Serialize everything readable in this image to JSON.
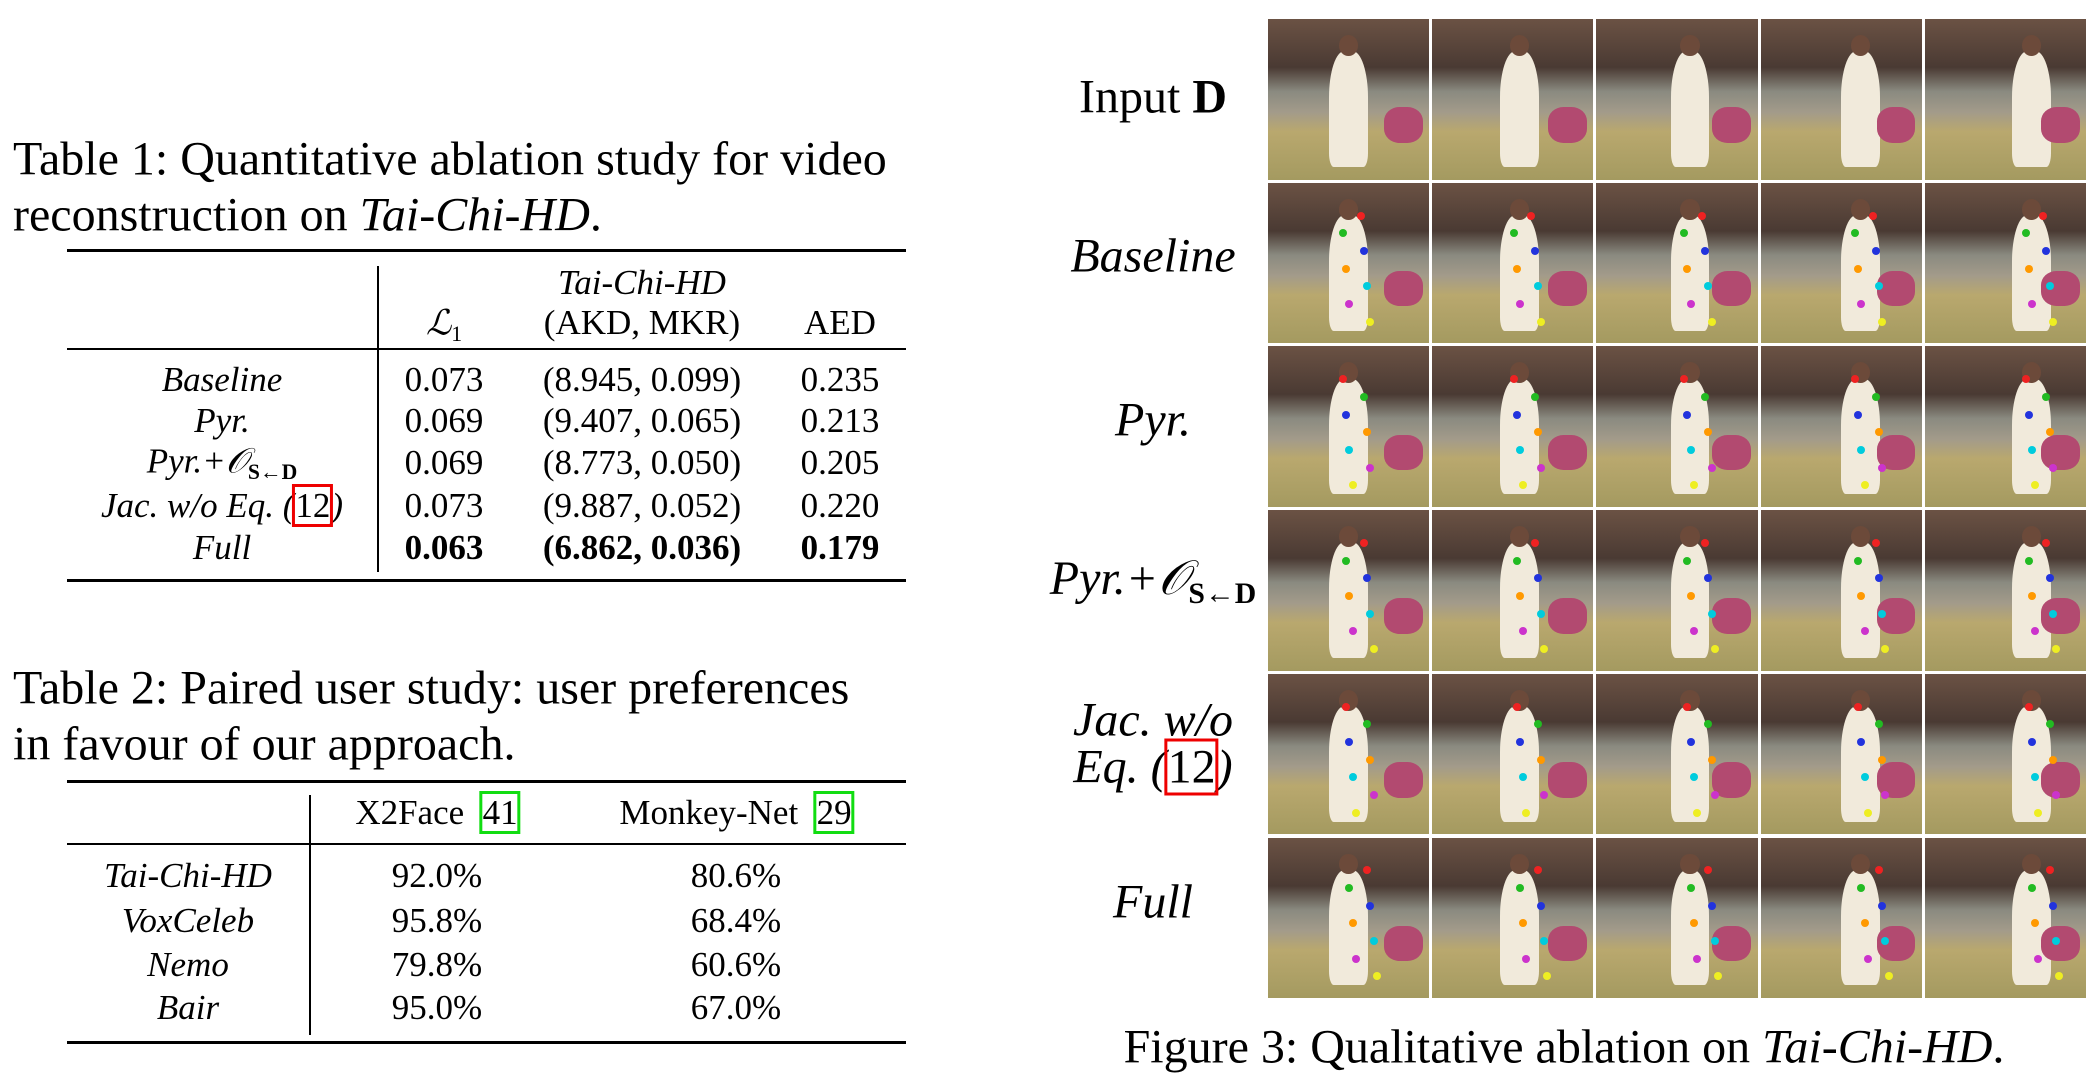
{
  "table1": {
    "caption": {
      "line1": "Table 1: Quantitative ablation study for video",
      "line2": "reconstruction on ",
      "emph": "Tai-Chi-HD",
      "end": "."
    },
    "header": {
      "group": "Tai-Chi-HD",
      "l1": "ℒ",
      "l1_sub": "1",
      "akd_mkr": "(AKD, MKR)",
      "aed": "AED"
    },
    "rows": [
      {
        "method": "Baseline",
        "l1": "0.073",
        "akd_mkr": "(8.945, 0.099)",
        "aed": "0.235"
      },
      {
        "method": "Pyr.",
        "l1": "0.069",
        "akd_mkr": "(9.407, 0.065)",
        "aed": "0.213"
      },
      {
        "method": "Pyr.+𝒪",
        "method_sub": "S←D",
        "l1": "0.069",
        "akd_mkr": "(8.773, 0.050)",
        "aed": "0.205"
      },
      {
        "method": "Jac. w/o Eq. (",
        "ref": "12",
        "method_end": ")",
        "l1": "0.073",
        "akd_mkr": "(9.887, 0.052)",
        "aed": "0.220"
      },
      {
        "method": "Full",
        "l1": "0.063",
        "akd_mkr": "(6.862, 0.036)",
        "aed": "0.179",
        "bold": true
      }
    ]
  },
  "table2": {
    "caption": {
      "line1": "Table 2: Paired user study: user preferences",
      "line2": "in favour of our approach."
    },
    "header": [
      {
        "name": "X2Face",
        "ref": "41"
      },
      {
        "name": "Monkey-Net",
        "ref": "29"
      }
    ],
    "rows": [
      {
        "dataset": "Tai-Chi-HD",
        "values": [
          "92.0%",
          "80.6%"
        ]
      },
      {
        "dataset": "VoxCeleb",
        "values": [
          "95.8%",
          "68.4%"
        ]
      },
      {
        "dataset": "Nemo",
        "values": [
          "79.8%",
          "60.6%"
        ]
      },
      {
        "dataset": "Bair",
        "values": [
          "95.0%",
          "67.0%"
        ]
      }
    ]
  },
  "figure3": {
    "row_labels": [
      {
        "text": "Input ",
        "bold": "D"
      },
      {
        "text": "Baseline"
      },
      {
        "text": "Pyr."
      },
      {
        "text": "Pyr.+𝒪",
        "sub": "S←D"
      },
      {
        "text": "Jac. w/o",
        "line2": "Eq. (",
        "ref": "12",
        "end": ")"
      },
      {
        "text": "Full"
      }
    ],
    "caption": {
      "text": "Figure 3: Qualitative ablation on ",
      "emph": "Tai-Chi-HD",
      "end": "."
    }
  }
}
